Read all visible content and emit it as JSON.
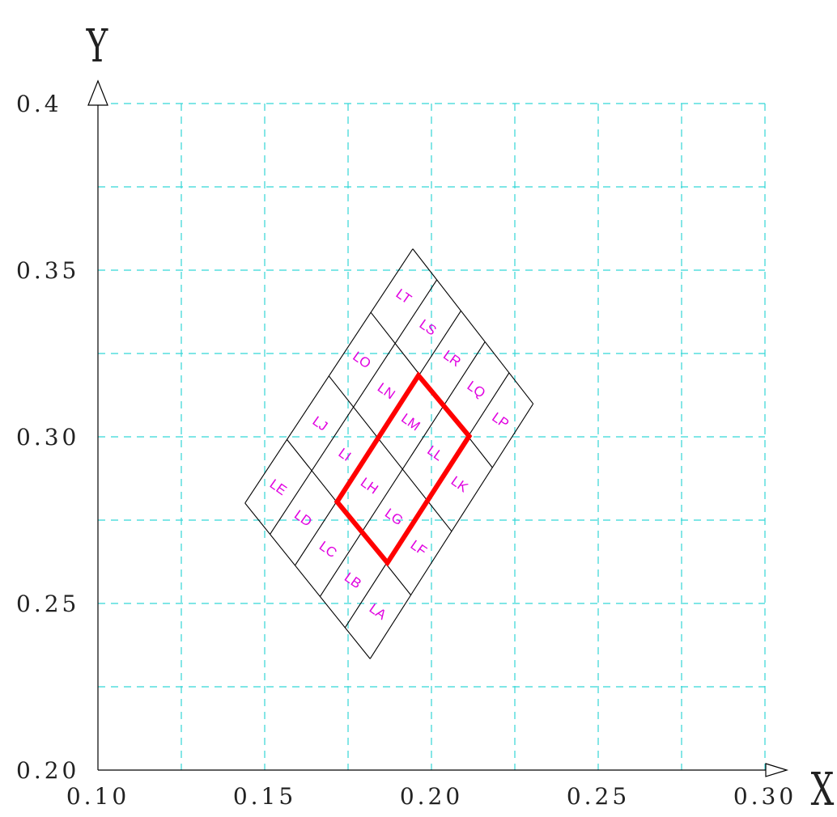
{
  "chart_data": {
    "type": "scatter",
    "title": "",
    "xlabel": "X",
    "ylabel": "Y",
    "xlim": [
      0.1,
      0.3
    ],
    "ylim": [
      0.2,
      0.4
    ],
    "x_ticks": [
      {
        "value": 0.1,
        "label": "0.10"
      },
      {
        "value": 0.15,
        "label": "0.15"
      },
      {
        "value": 0.2,
        "label": "0.20"
      },
      {
        "value": 0.25,
        "label": "0.25"
      },
      {
        "value": 0.3,
        "label": "0.30"
      }
    ],
    "y_ticks": [
      {
        "value": 0.2,
        "label": "0.20"
      },
      {
        "value": 0.25,
        "label": "0.25"
      },
      {
        "value": 0.3,
        "label": "0.30"
      },
      {
        "value": 0.35,
        "label": "0.35"
      },
      {
        "value": 0.4,
        "label": "0.4"
      }
    ],
    "grid": true,
    "grid_step": 0.025,
    "grid_style": "dashed",
    "quad_corners": {
      "bottom": [
        0.1816,
        0.2334
      ],
      "left": [
        0.1441,
        0.2801
      ],
      "top": [
        0.1944,
        0.3564
      ],
      "right": [
        0.2305,
        0.3099
      ]
    },
    "cells": [
      {
        "label": "LA",
        "row": 0,
        "col": 0
      },
      {
        "label": "LB",
        "row": 1,
        "col": 0
      },
      {
        "label": "LC",
        "row": 2,
        "col": 0
      },
      {
        "label": "LD",
        "row": 3,
        "col": 0
      },
      {
        "label": "LE",
        "row": 4,
        "col": 0
      },
      {
        "label": "LF",
        "row": 0,
        "col": 1
      },
      {
        "label": "LG",
        "row": 1,
        "col": 1
      },
      {
        "label": "LH",
        "row": 2,
        "col": 1
      },
      {
        "label": "LI",
        "row": 3,
        "col": 1
      },
      {
        "label": "LJ",
        "row": 4,
        "col": 1
      },
      {
        "label": "LK",
        "row": 0,
        "col": 2
      },
      {
        "label": "LL",
        "row": 1,
        "col": 2
      },
      {
        "label": "LM",
        "row": 2,
        "col": 2
      },
      {
        "label": "LN",
        "row": 3,
        "col": 2
      },
      {
        "label": "LO",
        "row": 4,
        "col": 2
      },
      {
        "label": "LP",
        "row": 0,
        "col": 3
      },
      {
        "label": "LQ",
        "row": 1,
        "col": 3
      },
      {
        "label": "LR",
        "row": 2,
        "col": 3
      },
      {
        "label": "LS",
        "row": 3,
        "col": 3
      },
      {
        "label": "LT",
        "row": 4,
        "col": 3
      }
    ],
    "highlight": {
      "points": [
        [
          0.1868,
          0.2622
        ],
        [
          0.1717,
          0.2805
        ],
        [
          0.1961,
          0.3184
        ],
        [
          0.2113,
          0.3002
        ]
      ]
    },
    "colors": {
      "grid": "#33d6d6",
      "axis": "#000000",
      "quad": "#000000",
      "label": "#e000e0",
      "highlight": "#ff0000"
    }
  }
}
